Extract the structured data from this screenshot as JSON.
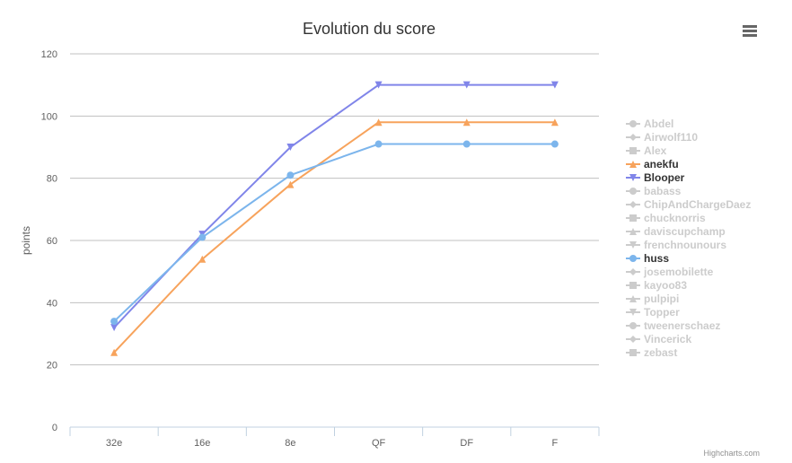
{
  "chart_data": {
    "type": "line",
    "title": "Evolution du score",
    "ylabel": "points",
    "xlabel": "",
    "categories": [
      "32e",
      "16e",
      "8e",
      "QF",
      "DF",
      "F"
    ],
    "yticks": [
      0,
      20,
      40,
      60,
      80,
      100,
      120
    ],
    "ylim": [
      0,
      120
    ],
    "grid": true,
    "legend_position": "right",
    "series": [
      {
        "name": "Abdel",
        "visible": false,
        "marker": "circle",
        "color": "#cccccc"
      },
      {
        "name": "Airwolf110",
        "visible": false,
        "marker": "diamond",
        "color": "#cccccc"
      },
      {
        "name": "Alex",
        "visible": false,
        "marker": "square",
        "color": "#cccccc"
      },
      {
        "name": "anekfu",
        "visible": true,
        "marker": "triangle",
        "color": "#f7a35c",
        "values": [
          24,
          54,
          78,
          98,
          98,
          98
        ]
      },
      {
        "name": "Blooper",
        "visible": true,
        "marker": "triangle-down",
        "color": "#8085e9",
        "values": [
          32,
          62,
          90,
          110,
          110,
          110
        ]
      },
      {
        "name": "babass",
        "visible": false,
        "marker": "circle",
        "color": "#cccccc"
      },
      {
        "name": "ChipAndChargeDaez",
        "visible": false,
        "marker": "diamond",
        "color": "#cccccc"
      },
      {
        "name": "chucknorris",
        "visible": false,
        "marker": "square",
        "color": "#cccccc"
      },
      {
        "name": "daviscupchamp",
        "visible": false,
        "marker": "triangle",
        "color": "#cccccc"
      },
      {
        "name": "frenchnounours",
        "visible": false,
        "marker": "triangle-down",
        "color": "#cccccc"
      },
      {
        "name": "huss",
        "visible": true,
        "marker": "circle",
        "color": "#7cb5ec",
        "values": [
          34,
          61,
          81,
          91,
          91,
          91
        ]
      },
      {
        "name": "josemobilette",
        "visible": false,
        "marker": "diamond",
        "color": "#cccccc"
      },
      {
        "name": "kayoo83",
        "visible": false,
        "marker": "square",
        "color": "#cccccc"
      },
      {
        "name": "pulpipi",
        "visible": false,
        "marker": "triangle",
        "color": "#cccccc"
      },
      {
        "name": "Topper",
        "visible": false,
        "marker": "triangle-down",
        "color": "#cccccc"
      },
      {
        "name": "tweenerschaez",
        "visible": false,
        "marker": "circle",
        "color": "#cccccc"
      },
      {
        "name": "Vincerick",
        "visible": false,
        "marker": "diamond",
        "color": "#cccccc"
      },
      {
        "name": "zebast",
        "visible": false,
        "marker": "square",
        "color": "#cccccc"
      }
    ]
  },
  "ui": {
    "credits": "Highcharts.com",
    "menu_icon": "hamburger-menu-icon",
    "active_text_color": "#333333",
    "hidden_text_color": "#cccccc",
    "grid_color": "#c0c0c0",
    "axis_color": "#c0d0e0"
  }
}
